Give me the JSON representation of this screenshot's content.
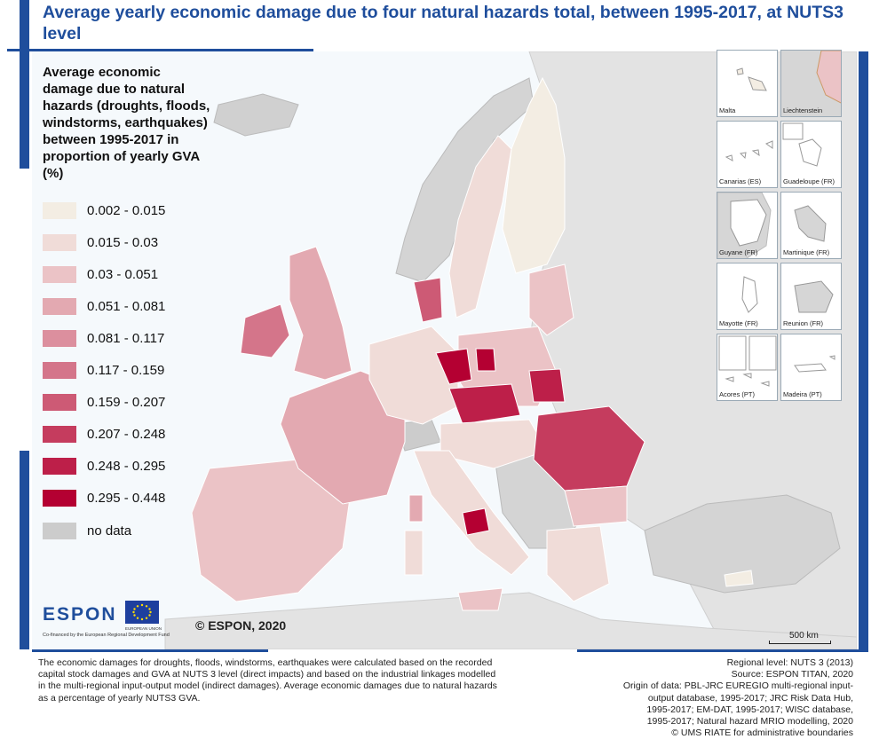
{
  "title": "Average yearly economic damage due to four natural hazards total, between 1995-2017, at NUTS3 level",
  "legend": {
    "title": "Average economic damage due to natural hazards (droughts, floods, windstorms, earthquakes) between 1995-2017 in proportion of yearly GVA (%)",
    "classes": [
      {
        "label": "0.002 - 0.015",
        "color": "#f3ede3"
      },
      {
        "label": "0.015 - 0.03",
        "color": "#f0dcd8"
      },
      {
        "label": "0.03 - 0.051",
        "color": "#ebc3c6"
      },
      {
        "label": "0.051 - 0.081",
        "color": "#e3a9b1"
      },
      {
        "label": "0.081 - 0.117",
        "color": "#dc8f9e"
      },
      {
        "label": "0.117 - 0.159",
        "color": "#d4758a"
      },
      {
        "label": "0.159 - 0.207",
        "color": "#cd5a75"
      },
      {
        "label": "0.207 - 0.248",
        "color": "#c53c5e"
      },
      {
        "label": "0.248 - 0.295",
        "color": "#bd1f49"
      },
      {
        "label": "0.295 - 0.448",
        "color": "#b40032"
      },
      {
        "label": "no data",
        "color": "#cccccc"
      }
    ]
  },
  "insets": [
    {
      "label": "Malta"
    },
    {
      "label": "Liechtenstein"
    },
    {
      "label": "Canarias (ES)"
    },
    {
      "label": "Guadeloupe (FR)"
    },
    {
      "label": "Guyane (FR)"
    },
    {
      "label": "Martinique (FR)"
    },
    {
      "label": "Mayotte (FR)"
    },
    {
      "label": "Reunion (FR)"
    },
    {
      "label": "Acores (PT)"
    },
    {
      "label": "Madeira (PT)"
    }
  ],
  "logos": {
    "espon": "ESPON",
    "espon_sub": "Co-financed by the European Regional Development Fund",
    "eu_sub": "EUROPEAN UNION"
  },
  "copyright": "© ESPON, 2020",
  "scale": "500 km",
  "note": "The economic damages for droughts, floods, windstorms, earthquakes were calculated based on the recorded capital stock damages and GVA at NUTS 3 level (direct impacts) and based on the industrial linkages modelled in the multi-regional input-output model (indirect damages). Average economic damages due to natural hazards as a percentage of yearly NUTS3 GVA.",
  "sources": [
    "Regional level: NUTS 3 (2013)",
    "Source: ESPON TITAN, 2020",
    "Origin of data: PBL-JRC EUREGIO multi-regional input-",
    "output database, 1995-2017; JRC Risk Data Hub,",
    "1995-2017; EM-DAT, 1995-2017; WISC database,",
    "1995-2017; Natural hazard MRIO modelling, 2020",
    "© UMS RIATE for administrative boundaries"
  ]
}
